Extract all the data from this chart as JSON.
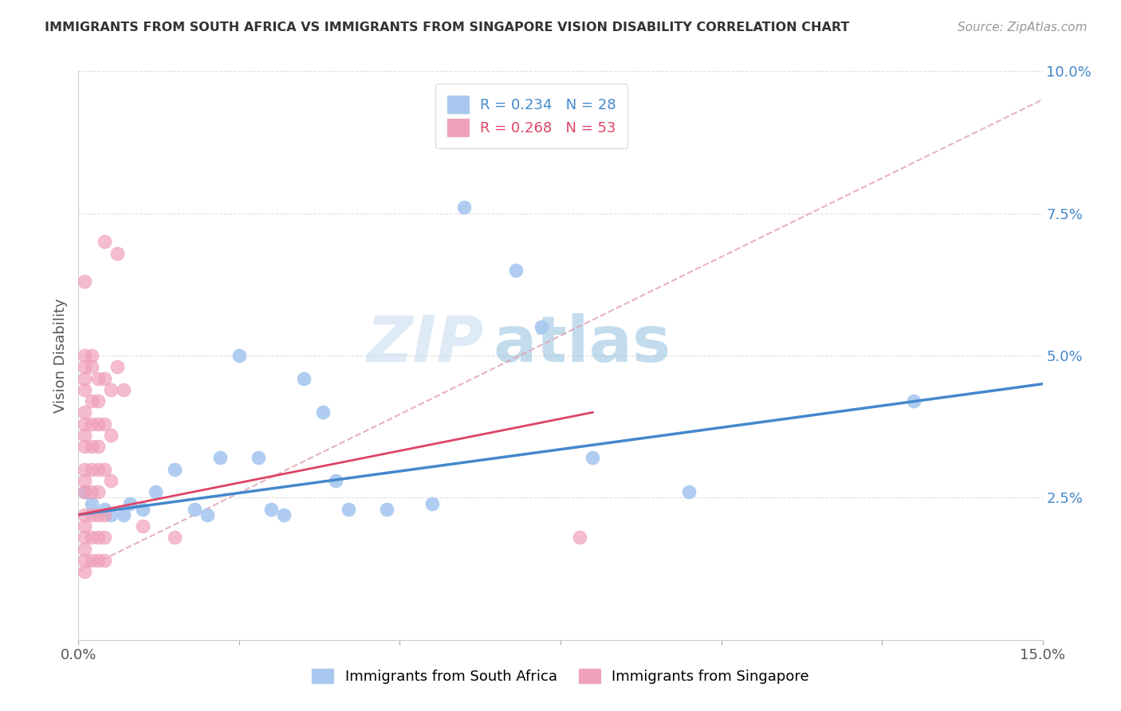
{
  "title": "IMMIGRANTS FROM SOUTH AFRICA VS IMMIGRANTS FROM SINGAPORE VISION DISABILITY CORRELATION CHART",
  "source": "Source: ZipAtlas.com",
  "ylabel": "Vision Disability",
  "xlim": [
    0.0,
    0.15
  ],
  "ylim": [
    0.0,
    0.1
  ],
  "south_africa_color": "#A8C8F0",
  "singapore_color": "#F0A0B8",
  "south_africa_line_color": "#4488CC",
  "singapore_line_color": "#DD4466",
  "dashed_line_color": "#E0A0B0",
  "R_south_africa": 0.234,
  "N_south_africa": 28,
  "R_singapore": 0.268,
  "N_singapore": 53,
  "south_africa_points": [
    [
      0.001,
      0.026
    ],
    [
      0.002,
      0.024
    ],
    [
      0.004,
      0.023
    ],
    [
      0.005,
      0.022
    ],
    [
      0.007,
      0.022
    ],
    [
      0.008,
      0.024
    ],
    [
      0.01,
      0.023
    ],
    [
      0.012,
      0.026
    ],
    [
      0.015,
      0.03
    ],
    [
      0.018,
      0.023
    ],
    [
      0.02,
      0.022
    ],
    [
      0.022,
      0.032
    ],
    [
      0.025,
      0.05
    ],
    [
      0.028,
      0.032
    ],
    [
      0.03,
      0.023
    ],
    [
      0.032,
      0.022
    ],
    [
      0.035,
      0.046
    ],
    [
      0.038,
      0.04
    ],
    [
      0.04,
      0.028
    ],
    [
      0.042,
      0.023
    ],
    [
      0.048,
      0.023
    ],
    [
      0.055,
      0.024
    ],
    [
      0.06,
      0.076
    ],
    [
      0.068,
      0.065
    ],
    [
      0.072,
      0.055
    ],
    [
      0.08,
      0.032
    ],
    [
      0.095,
      0.026
    ],
    [
      0.13,
      0.042
    ]
  ],
  "singapore_points": [
    [
      0.001,
      0.063
    ],
    [
      0.001,
      0.05
    ],
    [
      0.001,
      0.048
    ],
    [
      0.001,
      0.046
    ],
    [
      0.001,
      0.044
    ],
    [
      0.001,
      0.04
    ],
    [
      0.001,
      0.038
    ],
    [
      0.001,
      0.036
    ],
    [
      0.001,
      0.034
    ],
    [
      0.001,
      0.03
    ],
    [
      0.001,
      0.028
    ],
    [
      0.001,
      0.026
    ],
    [
      0.001,
      0.022
    ],
    [
      0.001,
      0.02
    ],
    [
      0.001,
      0.018
    ],
    [
      0.001,
      0.016
    ],
    [
      0.001,
      0.014
    ],
    [
      0.001,
      0.012
    ],
    [
      0.002,
      0.05
    ],
    [
      0.002,
      0.048
    ],
    [
      0.002,
      0.042
    ],
    [
      0.002,
      0.038
    ],
    [
      0.002,
      0.034
    ],
    [
      0.002,
      0.03
    ],
    [
      0.002,
      0.026
    ],
    [
      0.002,
      0.022
    ],
    [
      0.002,
      0.018
    ],
    [
      0.002,
      0.014
    ],
    [
      0.003,
      0.046
    ],
    [
      0.003,
      0.042
    ],
    [
      0.003,
      0.038
    ],
    [
      0.003,
      0.034
    ],
    [
      0.003,
      0.03
    ],
    [
      0.003,
      0.026
    ],
    [
      0.003,
      0.022
    ],
    [
      0.003,
      0.018
    ],
    [
      0.003,
      0.014
    ],
    [
      0.004,
      0.07
    ],
    [
      0.004,
      0.046
    ],
    [
      0.004,
      0.038
    ],
    [
      0.004,
      0.03
    ],
    [
      0.004,
      0.022
    ],
    [
      0.004,
      0.018
    ],
    [
      0.004,
      0.014
    ],
    [
      0.005,
      0.044
    ],
    [
      0.005,
      0.036
    ],
    [
      0.005,
      0.028
    ],
    [
      0.006,
      0.068
    ],
    [
      0.006,
      0.048
    ],
    [
      0.007,
      0.044
    ],
    [
      0.01,
      0.02
    ],
    [
      0.015,
      0.018
    ],
    [
      0.078,
      0.018
    ]
  ],
  "watermark_text": "ZIP",
  "watermark_text2": "atlas",
  "background_color": "#FFFFFF",
  "grid_color": "#DDDDDD"
}
